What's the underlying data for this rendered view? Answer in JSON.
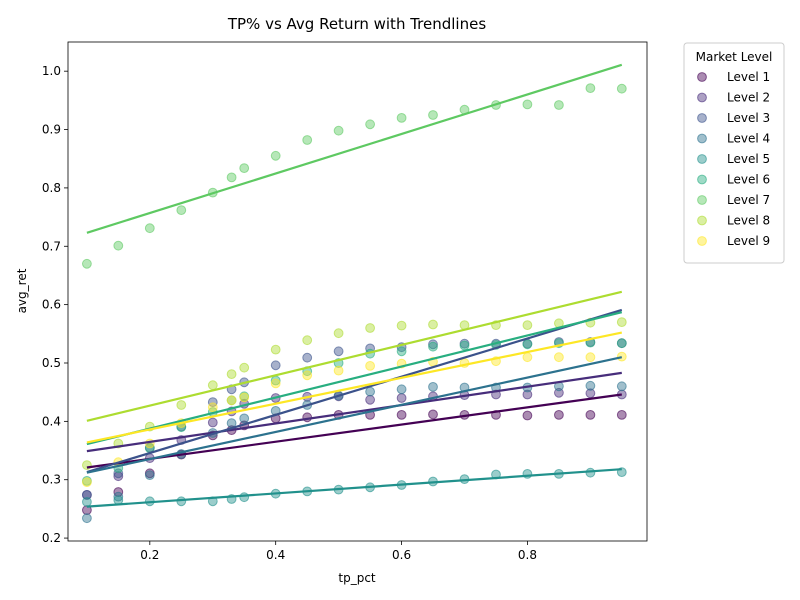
{
  "chart_data": {
    "type": "scatter",
    "title": "TP% vs Avg Return with Trendlines",
    "xlabel": "tp_pct",
    "ylabel": "avg_ret",
    "xlim": [
      0.07,
      0.99
    ],
    "ylim": [
      0.195,
      1.05
    ],
    "xticks": [
      0.2,
      0.4,
      0.6,
      0.8
    ],
    "xtick_labels": [
      "0.2",
      "0.4",
      "0.6",
      "0.8"
    ],
    "yticks": [
      0.2,
      0.3,
      0.4,
      0.5,
      0.6,
      0.7,
      0.8,
      0.9,
      1.0
    ],
    "ytick_labels": [
      "0.2",
      "0.3",
      "0.4",
      "0.5",
      "0.6",
      "0.7",
      "0.8",
      "0.9",
      "1.0"
    ],
    "grid": false,
    "legend": {
      "title": "Market Level",
      "placement": "outside-right-top"
    },
    "x": [
      0.1,
      0.15,
      0.2,
      0.25,
      0.3,
      0.33,
      0.35,
      0.4,
      0.45,
      0.5,
      0.55,
      0.6,
      0.65,
      0.7,
      0.75,
      0.8,
      0.85,
      0.9,
      0.95
    ],
    "series": [
      {
        "name": "Level 1",
        "color": "#440154",
        "values": [
          0.248,
          0.279,
          0.311,
          0.343,
          0.376,
          0.385,
          0.393,
          0.405,
          0.407,
          0.411,
          0.411,
          0.411,
          0.412,
          0.411,
          0.411,
          0.41,
          0.411,
          0.411,
          0.411
        ],
        "trend": [
          0.321,
          0.446
        ]
      },
      {
        "name": "Level 2",
        "color": "#472d7b",
        "values": [
          0.274,
          0.306,
          0.337,
          0.368,
          0.398,
          0.417,
          0.43,
          0.44,
          0.442,
          0.443,
          0.437,
          0.44,
          0.443,
          0.445,
          0.446,
          0.446,
          0.449,
          0.448,
          0.446
        ],
        "trend": [
          0.349,
          0.483
        ]
      },
      {
        "name": "Level 3",
        "color": "#3b528b",
        "values": [
          0.274,
          0.311,
          0.355,
          0.391,
          0.433,
          0.455,
          0.467,
          0.496,
          0.509,
          0.52,
          0.525,
          0.527,
          0.532,
          0.533,
          0.533,
          0.533,
          0.536,
          0.536,
          0.534
        ],
        "trend": [
          0.313,
          0.591
        ]
      },
      {
        "name": "Level 4",
        "color": "#2c728e",
        "values": [
          0.234,
          0.271,
          0.308,
          0.344,
          0.38,
          0.397,
          0.405,
          0.418,
          0.428,
          0.444,
          0.451,
          0.455,
          0.459,
          0.458,
          0.458,
          0.458,
          0.46,
          0.461,
          0.46
        ],
        "trend": [
          0.312,
          0.51
        ]
      },
      {
        "name": "Level 5",
        "color": "#21918c",
        "values": [
          0.262,
          0.265,
          0.263,
          0.263,
          0.263,
          0.267,
          0.27,
          0.276,
          0.28,
          0.283,
          0.287,
          0.291,
          0.297,
          0.301,
          0.309,
          0.31,
          0.31,
          0.312,
          0.313
        ],
        "trend": [
          0.254,
          0.318
        ]
      },
      {
        "name": "Level 6",
        "color": "#28ae80",
        "values": [
          0.298,
          0.32,
          0.354,
          0.39,
          0.416,
          0.436,
          0.443,
          0.47,
          0.486,
          0.5,
          0.516,
          0.52,
          0.528,
          0.53,
          0.531,
          0.532,
          0.534,
          0.535,
          0.534
        ],
        "trend": [
          0.361,
          0.587
        ]
      },
      {
        "name": "Level 7",
        "color": "#5ec962",
        "values": [
          0.67,
          0.701,
          0.731,
          0.762,
          0.792,
          0.818,
          0.834,
          0.855,
          0.882,
          0.898,
          0.909,
          0.92,
          0.925,
          0.934,
          0.942,
          0.943,
          0.942,
          0.971,
          0.97
        ],
        "trend": [
          0.723,
          1.011
        ]
      },
      {
        "name": "Level 8",
        "color": "#addc30",
        "values": [
          0.325,
          0.362,
          0.391,
          0.428,
          0.462,
          0.481,
          0.492,
          0.523,
          0.539,
          0.551,
          0.56,
          0.564,
          0.566,
          0.565,
          0.565,
          0.565,
          0.568,
          0.569,
          0.57
        ],
        "trend": [
          0.401,
          0.622
        ]
      },
      {
        "name": "Level 9",
        "color": "#fde725",
        "values": [
          0.296,
          0.33,
          0.362,
          0.397,
          0.424,
          0.436,
          0.441,
          0.465,
          0.479,
          0.487,
          0.495,
          0.499,
          0.502,
          0.5,
          0.503,
          0.51,
          0.51,
          0.51,
          0.511
        ],
        "trend": [
          0.364,
          0.552
        ]
      }
    ]
  }
}
